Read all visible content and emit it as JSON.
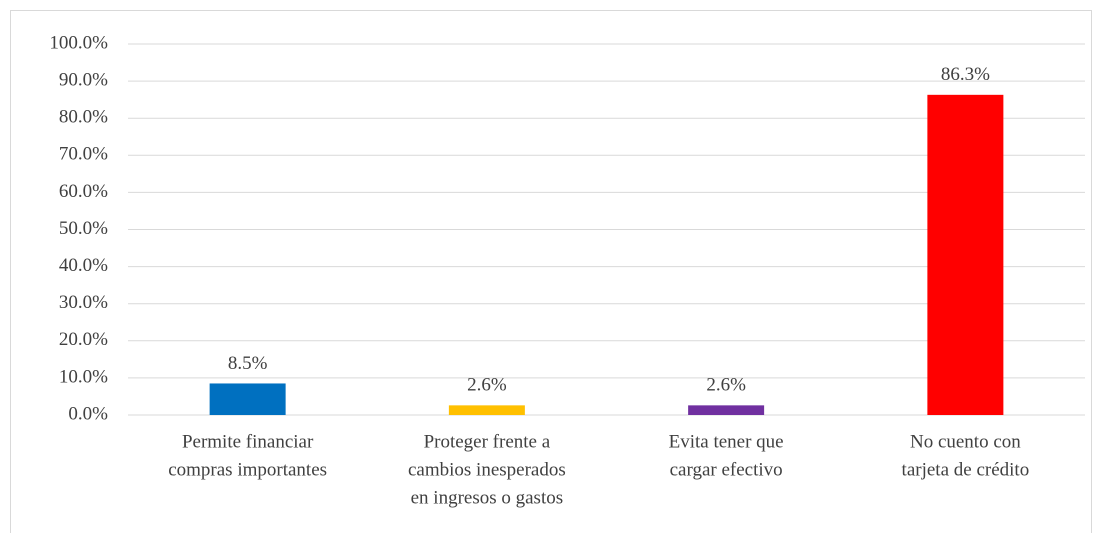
{
  "chart_data": {
    "type": "bar",
    "categories": [
      [
        "Permite financiar",
        "compras importantes"
      ],
      [
        "Proteger frente a",
        "cambios inesperados",
        "en ingresos o gastos"
      ],
      [
        "Evita tener que",
        "cargar efectivo"
      ],
      [
        "No cuento con",
        "tarjeta de crédito"
      ]
    ],
    "values": [
      8.5,
      2.6,
      2.6,
      86.3
    ],
    "value_labels": [
      "8.5%",
      "2.6%",
      "2.6%",
      "86.3%"
    ],
    "colors": [
      "#0070c0",
      "#ffc000",
      "#7030a0",
      "#ff0000"
    ],
    "ylim": [
      0,
      100
    ],
    "yticks": [
      {
        "value": 0,
        "label": "0.0%"
      },
      {
        "value": 10,
        "label": "10.0%"
      },
      {
        "value": 20,
        "label": "20.0%"
      },
      {
        "value": 30,
        "label": "30.0%"
      },
      {
        "value": 40,
        "label": "40.0%"
      },
      {
        "value": 50,
        "label": "50.0%"
      },
      {
        "value": 60,
        "label": "60.0%"
      },
      {
        "value": 70,
        "label": "70.0%"
      },
      {
        "value": 80,
        "label": "80.0%"
      },
      {
        "value": 90,
        "label": "90.0%"
      },
      {
        "value": 100,
        "label": "100.0%"
      }
    ],
    "grid": true
  }
}
